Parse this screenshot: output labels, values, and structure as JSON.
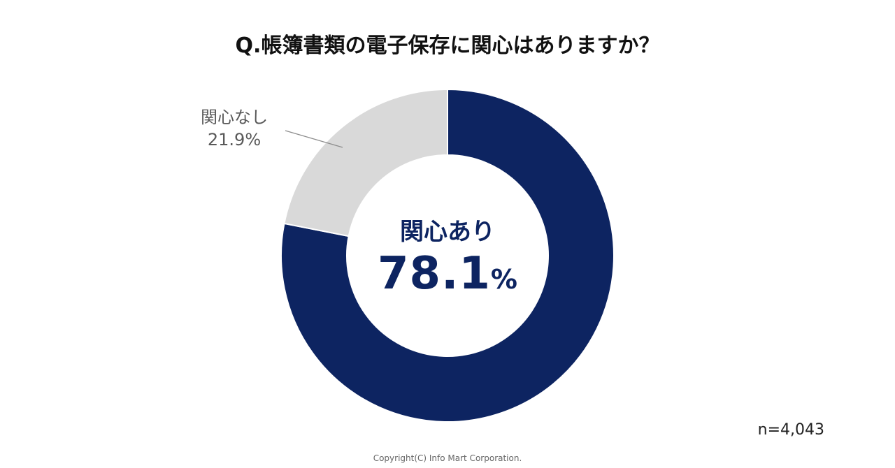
{
  "title": "Q.帳簿書類の電子保存に関心はありますか？",
  "chart_data": {
    "type": "pie",
    "categories": [
      "関心あり",
      "関心なし"
    ],
    "values": [
      78.1,
      21.9
    ],
    "value_labels": [
      "78.1%",
      "21.9%"
    ],
    "colors": [
      "#0d2461",
      "#d9d9d9"
    ]
  },
  "sample_size": "n=4,043",
  "copyright": "Copyright(C) Info Mart Corporation."
}
